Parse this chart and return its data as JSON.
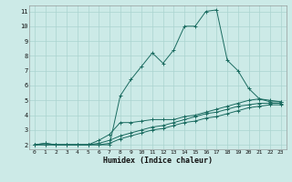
{
  "xlabel": "Humidex (Indice chaleur)",
  "bg_color": "#cceae7",
  "grid_color": "#aad4d0",
  "line_color": "#1a6b60",
  "xlim": [
    -0.5,
    23.5
  ],
  "ylim": [
    1.7,
    11.4
  ],
  "xticks": [
    0,
    1,
    2,
    3,
    4,
    5,
    6,
    7,
    8,
    9,
    10,
    11,
    12,
    13,
    14,
    15,
    16,
    17,
    18,
    19,
    20,
    21,
    22,
    23
  ],
  "yticks": [
    2,
    3,
    4,
    5,
    6,
    7,
    8,
    9,
    10,
    11
  ],
  "lines": [
    {
      "x": [
        0,
        1,
        2,
        3,
        4,
        5,
        6,
        7,
        8,
        9,
        10,
        11,
        12,
        13,
        14,
        15,
        16,
        17,
        18,
        19,
        20,
        21,
        22,
        23
      ],
      "y": [
        2.0,
        2.1,
        2.0,
        2.0,
        2.0,
        2.0,
        2.0,
        2.0,
        5.3,
        6.4,
        7.3,
        8.2,
        7.5,
        8.4,
        10.0,
        10.0,
        11.0,
        11.1,
        7.7,
        7.0,
        5.8,
        5.1,
        4.9,
        4.9
      ]
    },
    {
      "x": [
        0,
        1,
        2,
        3,
        4,
        5,
        6,
        7,
        8,
        9,
        10,
        11,
        12,
        13,
        14,
        15,
        16,
        17,
        18,
        19,
        20,
        21,
        22,
        23
      ],
      "y": [
        2.0,
        2.1,
        2.0,
        2.0,
        2.0,
        2.0,
        2.3,
        2.7,
        3.5,
        3.5,
        3.6,
        3.7,
        3.7,
        3.7,
        3.9,
        4.0,
        4.2,
        4.4,
        4.6,
        4.8,
        5.0,
        5.1,
        5.0,
        4.9
      ]
    },
    {
      "x": [
        0,
        1,
        2,
        3,
        4,
        5,
        6,
        7,
        8,
        9,
        10,
        11,
        12,
        13,
        14,
        15,
        16,
        17,
        18,
        19,
        20,
        21,
        22,
        23
      ],
      "y": [
        2.0,
        2.0,
        2.0,
        2.0,
        2.0,
        2.0,
        2.1,
        2.3,
        2.6,
        2.8,
        3.0,
        3.2,
        3.3,
        3.5,
        3.7,
        3.9,
        4.1,
        4.2,
        4.4,
        4.6,
        4.7,
        4.8,
        4.8,
        4.8
      ]
    },
    {
      "x": [
        0,
        1,
        2,
        3,
        4,
        5,
        6,
        7,
        8,
        9,
        10,
        11,
        12,
        13,
        14,
        15,
        16,
        17,
        18,
        19,
        20,
        21,
        22,
        23
      ],
      "y": [
        2.0,
        2.0,
        2.0,
        2.0,
        2.0,
        2.0,
        2.0,
        2.1,
        2.4,
        2.6,
        2.8,
        3.0,
        3.1,
        3.3,
        3.5,
        3.6,
        3.8,
        3.9,
        4.1,
        4.3,
        4.5,
        4.6,
        4.7,
        4.7
      ]
    }
  ]
}
